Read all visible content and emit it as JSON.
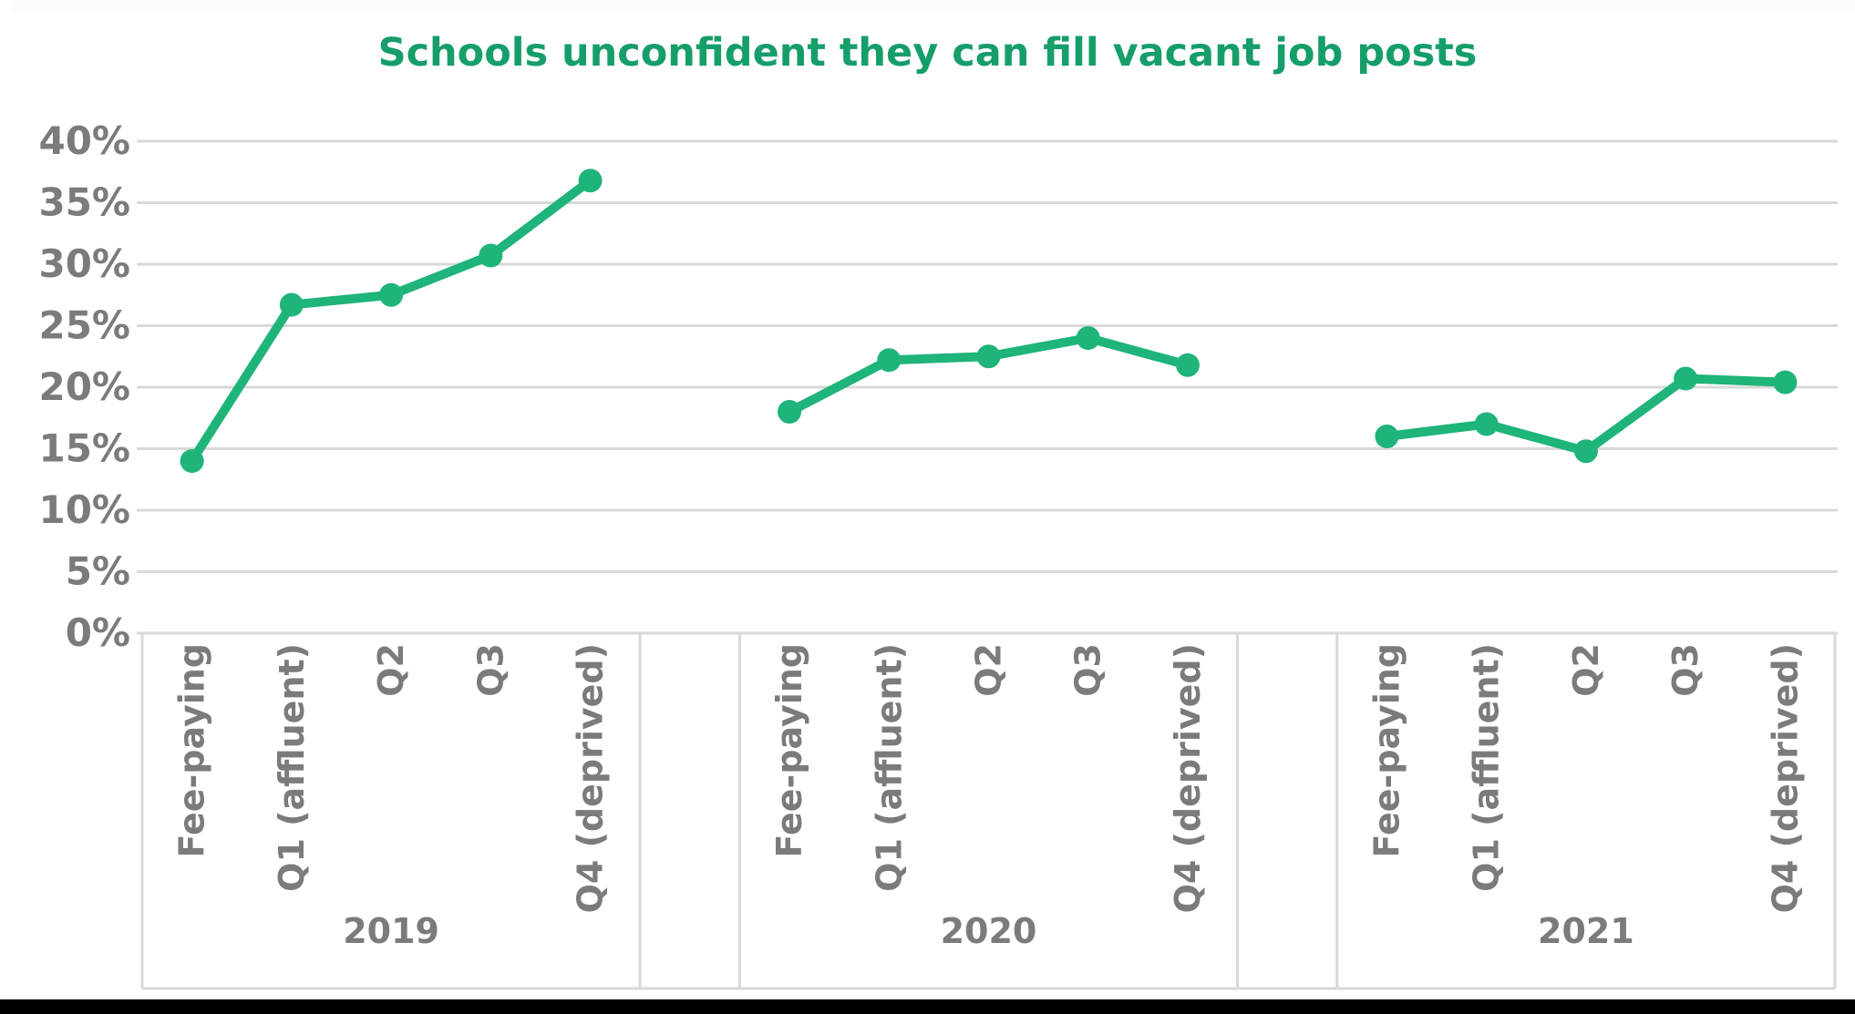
{
  "title": {
    "text": "Schools unconfident they can fill vacant job posts"
  },
  "colors": {
    "title_green": "#169e6a",
    "line_green": "#1eb47a",
    "axis_text_gray": "#7b7b7b",
    "gridline_gray": "#d9d9d9",
    "bottom_bar_black": "#000000"
  },
  "chart_data": {
    "type": "line",
    "title": "Schools unconfident they can fill vacant job posts",
    "categories": [
      "Fee-paying",
      "Q1 (affluent)",
      "Q2",
      "Q3",
      "Q4 (deprived)"
    ],
    "groups": [
      {
        "year": "2019",
        "values": [
          14.0,
          26.7,
          27.5,
          30.7,
          36.8
        ]
      },
      {
        "year": "2020",
        "values": [
          18.0,
          22.2,
          22.5,
          24.0,
          21.8
        ]
      },
      {
        "year": "2021",
        "values": [
          16.0,
          17.0,
          14.8,
          20.7,
          20.4
        ]
      }
    ],
    "yticks": [
      {
        "value": 40,
        "label": "40%"
      },
      {
        "value": 35,
        "label": "35%"
      },
      {
        "value": 30,
        "label": "30%"
      },
      {
        "value": 25,
        "label": "25%"
      },
      {
        "value": 20,
        "label": "20%"
      },
      {
        "value": 15,
        "label": "15%"
      },
      {
        "value": 10,
        "label": "10%"
      },
      {
        "value": 5,
        "label": "5%"
      },
      {
        "value": 0,
        "label": "0%"
      }
    ],
    "ylim": [
      0,
      40
    ],
    "grid": true,
    "legend": "none",
    "xlabel": "",
    "ylabel": ""
  }
}
